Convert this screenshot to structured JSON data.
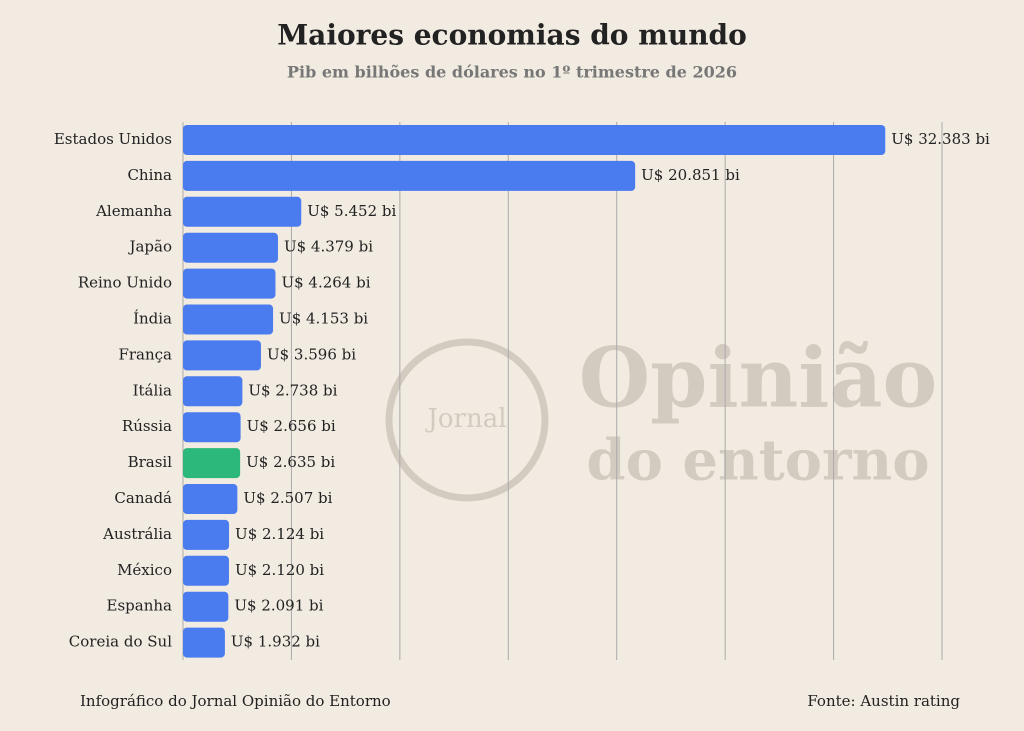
{
  "chart_data": {
    "type": "bar",
    "orientation": "horizontal",
    "title": "Maiores economias do mundo",
    "subtitle": "Pib em bilhões de dólares no 1º trimestre de 2026",
    "categories": [
      "Estados Unidos",
      "China",
      "Alemanha",
      "Japão",
      "Reino Unido",
      "Índia",
      "França",
      "Itália",
      "Rússia",
      "Brasil",
      "Canadá",
      "Austrália",
      "México",
      "Espanha",
      "Coreia do Sul"
    ],
    "values": [
      32383,
      20851,
      5452,
      4379,
      4264,
      4153,
      3596,
      2738,
      2656,
      2635,
      2507,
      2124,
      2120,
      2091,
      1932
    ],
    "value_labels": [
      "U$ 32.383 bi",
      "U$ 20.851 bi",
      "U$ 5.452 bi",
      "U$ 4.379 bi",
      "U$ 4.264 bi",
      "U$ 4.153 bi",
      "U$ 3.596 bi",
      "U$ 2.738 bi",
      "U$ 2.656 bi",
      "U$ 2.635 bi",
      "U$ 2.507 bi",
      "U$ 2.124 bi",
      "U$ 2.120 bi",
      "U$ 2.091 bi",
      "U$ 1.932 bi"
    ],
    "colors": [
      "#4a7bef",
      "#4a7bef",
      "#4a7bef",
      "#4a7bef",
      "#4a7bef",
      "#4a7bef",
      "#4a7bef",
      "#4a7bef",
      "#4a7bef",
      "#2bb87a",
      "#4a7bef",
      "#4a7bef",
      "#4a7bef",
      "#4a7bef",
      "#4a7bef"
    ],
    "xlim": [
      0,
      35000
    ],
    "xticks": [
      0,
      5000,
      10000,
      15000,
      20000,
      25000,
      30000,
      35000
    ],
    "grid": true,
    "watermark": [
      "Jornal",
      "Opinião",
      "do entorno"
    ],
    "footer_left": "Infográfico do Jornal Opinião do Entorno",
    "footer_right": "Fonte: Austin rating"
  }
}
